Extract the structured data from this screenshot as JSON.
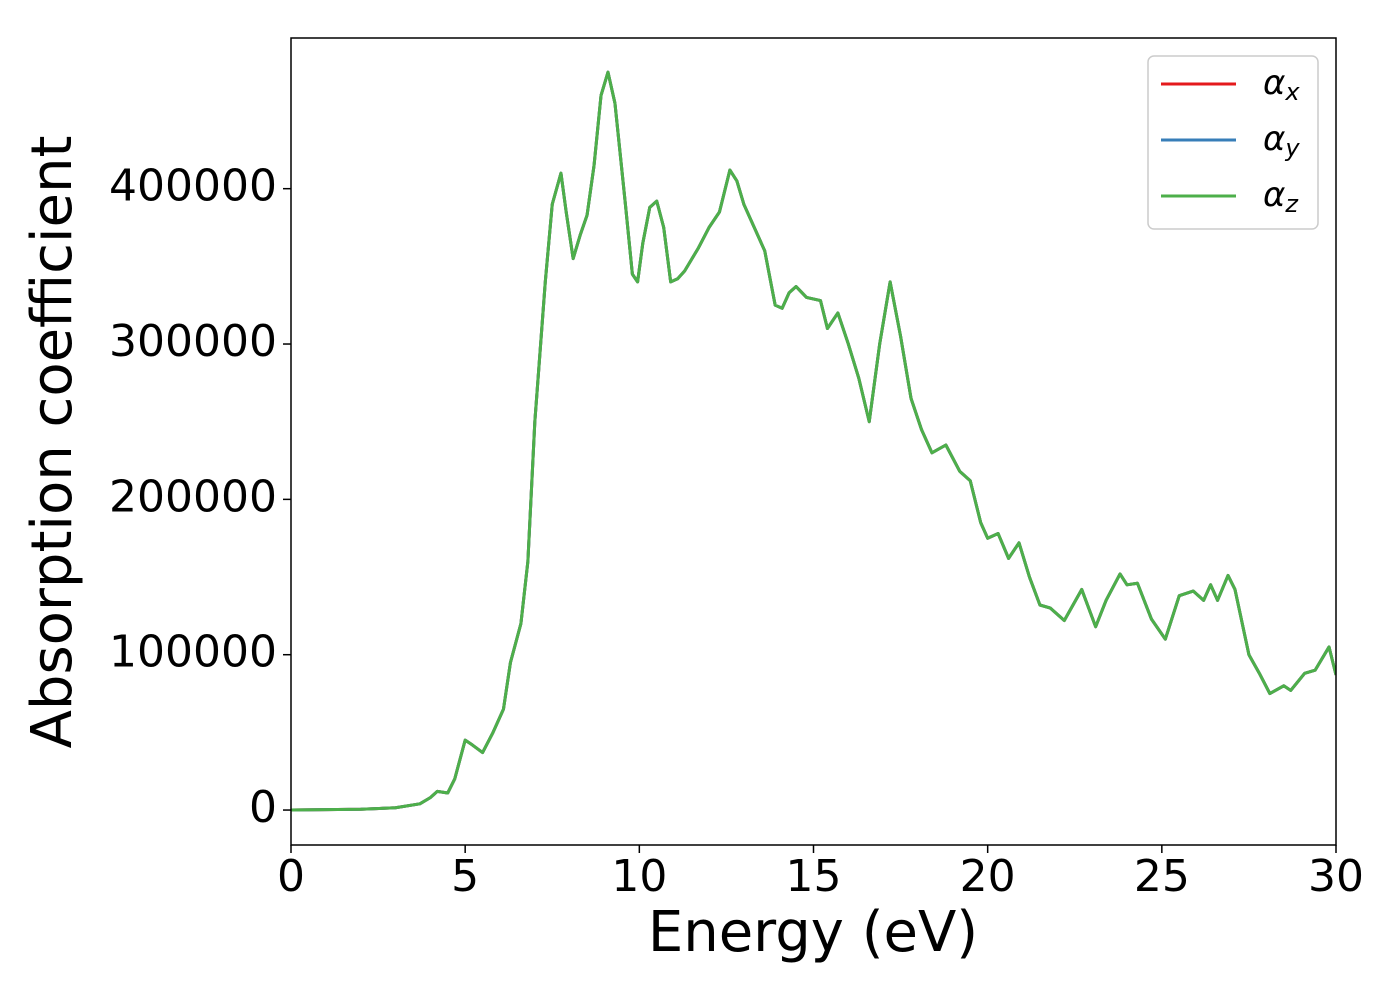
{
  "chart_data": {
    "type": "line",
    "xlabel": "Energy (eV)",
    "ylabel": "Absorption coefficient",
    "xlim": [
      0,
      30
    ],
    "ylim": [
      -22500,
      497000
    ],
    "xticks": [
      0,
      5,
      10,
      15,
      20,
      25,
      30
    ],
    "yticks": [
      0,
      100000,
      200000,
      300000,
      400000
    ],
    "legend": "upper right",
    "x": [
      0,
      2,
      3,
      3.7,
      4.0,
      4.2,
      4.5,
      4.7,
      5.0,
      5.2,
      5.5,
      5.8,
      6.1,
      6.3,
      6.6,
      6.8,
      7.0,
      7.3,
      7.5,
      7.75,
      7.9,
      8.1,
      8.3,
      8.5,
      8.7,
      8.9,
      9.1,
      9.3,
      9.6,
      9.8,
      9.95,
      10.1,
      10.3,
      10.5,
      10.7,
      10.9,
      11.1,
      11.3,
      11.7,
      12.0,
      12.3,
      12.6,
      12.8,
      13.0,
      13.3,
      13.6,
      13.9,
      14.1,
      14.3,
      14.5,
      14.8,
      15.2,
      15.4,
      15.7,
      16.0,
      16.3,
      16.6,
      16.9,
      17.2,
      17.5,
      17.8,
      18.1,
      18.4,
      18.8,
      19.2,
      19.5,
      19.8,
      20.0,
      20.3,
      20.6,
      20.9,
      21.2,
      21.5,
      21.8,
      22.2,
      22.7,
      23.1,
      23.4,
      23.8,
      24.0,
      24.3,
      24.7,
      25.1,
      25.5,
      25.9,
      26.2,
      26.4,
      26.6,
      26.9,
      27.1,
      27.5,
      27.8,
      28.1,
      28.5,
      28.7,
      29.1,
      29.4,
      29.8,
      30.0
    ],
    "series": [
      {
        "name": "αx",
        "color": "#e41a1c",
        "values": [
          0,
          500,
          1500,
          4000,
          8000,
          12000,
          11000,
          20000,
          45000,
          42000,
          37000,
          50000,
          65000,
          95000,
          120000,
          160000,
          250000,
          340000,
          390000,
          410000,
          385000,
          355000,
          370000,
          383000,
          415000,
          460000,
          475000,
          455000,
          390000,
          345000,
          340000,
          365000,
          388000,
          392000,
          375000,
          340000,
          342000,
          347000,
          362000,
          375000,
          385000,
          412000,
          405000,
          390000,
          375000,
          360000,
          325000,
          323000,
          333000,
          337000,
          330000,
          328000,
          310000,
          320000,
          300000,
          278000,
          250000,
          300000,
          340000,
          305000,
          265000,
          245000,
          230000,
          235000,
          218000,
          212000,
          185000,
          175000,
          178000,
          162000,
          172000,
          150000,
          132000,
          130000,
          122000,
          142000,
          118000,
          135000,
          152000,
          145000,
          146000,
          123000,
          110000,
          138000,
          141000,
          135000,
          145000,
          135000,
          151000,
          142000,
          100000,
          88000,
          75000,
          80000,
          77000,
          88000,
          90000,
          105000,
          87000
        ]
      },
      {
        "name": "αy",
        "color": "#377eb8",
        "values": [
          0,
          500,
          1500,
          4000,
          8000,
          12000,
          11000,
          20000,
          45000,
          42000,
          37000,
          50000,
          65000,
          95000,
          120000,
          160000,
          250000,
          340000,
          390000,
          410000,
          385000,
          355000,
          370000,
          383000,
          415000,
          460000,
          475000,
          455000,
          390000,
          345000,
          340000,
          365000,
          388000,
          392000,
          375000,
          340000,
          342000,
          347000,
          362000,
          375000,
          385000,
          412000,
          405000,
          390000,
          375000,
          360000,
          325000,
          323000,
          333000,
          337000,
          330000,
          328000,
          310000,
          320000,
          300000,
          278000,
          250000,
          300000,
          340000,
          305000,
          265000,
          245000,
          230000,
          235000,
          218000,
          212000,
          185000,
          175000,
          178000,
          162000,
          172000,
          150000,
          132000,
          130000,
          122000,
          142000,
          118000,
          135000,
          152000,
          145000,
          146000,
          123000,
          110000,
          138000,
          141000,
          135000,
          145000,
          135000,
          151000,
          142000,
          100000,
          88000,
          75000,
          80000,
          77000,
          88000,
          90000,
          105000,
          87000
        ]
      },
      {
        "name": "αz",
        "color": "#4daf4a",
        "values": [
          0,
          500,
          1500,
          4000,
          8000,
          12000,
          11000,
          20000,
          45000,
          42000,
          37000,
          50000,
          65000,
          95000,
          120000,
          160000,
          250000,
          340000,
          390000,
          410000,
          385000,
          355000,
          370000,
          383000,
          415000,
          460000,
          475000,
          455000,
          390000,
          345000,
          340000,
          365000,
          388000,
          392000,
          375000,
          340000,
          342000,
          347000,
          362000,
          375000,
          385000,
          412000,
          405000,
          390000,
          375000,
          360000,
          325000,
          323000,
          333000,
          337000,
          330000,
          328000,
          310000,
          320000,
          300000,
          278000,
          250000,
          300000,
          340000,
          305000,
          265000,
          245000,
          230000,
          235000,
          218000,
          212000,
          185000,
          175000,
          178000,
          162000,
          172000,
          150000,
          132000,
          130000,
          122000,
          142000,
          118000,
          135000,
          152000,
          145000,
          146000,
          123000,
          110000,
          138000,
          141000,
          135000,
          145000,
          135000,
          151000,
          142000,
          100000,
          88000,
          75000,
          80000,
          77000,
          88000,
          90000,
          105000,
          87000
        ]
      }
    ]
  }
}
